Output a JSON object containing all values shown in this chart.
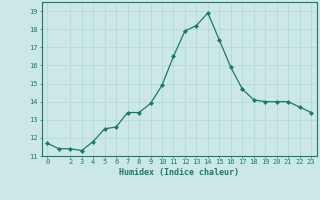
{
  "x": [
    0,
    1,
    2,
    3,
    4,
    5,
    6,
    7,
    8,
    9,
    10,
    11,
    12,
    13,
    14,
    15,
    16,
    17,
    18,
    19,
    20,
    21,
    22,
    23
  ],
  "y": [
    11.7,
    11.4,
    11.4,
    11.3,
    11.8,
    12.5,
    12.6,
    13.4,
    13.4,
    13.9,
    14.9,
    16.5,
    17.9,
    18.2,
    18.9,
    17.4,
    15.9,
    14.7,
    14.1,
    14.0,
    14.0,
    14.0,
    13.7,
    13.4
  ],
  "xlabel": "Humidex (Indice chaleur)",
  "ylim": [
    11,
    19.5
  ],
  "xlim": [
    -0.5,
    23.5
  ],
  "yticks": [
    11,
    12,
    13,
    14,
    15,
    16,
    17,
    18,
    19
  ],
  "xticks": [
    0,
    2,
    3,
    4,
    5,
    6,
    7,
    8,
    9,
    10,
    11,
    12,
    13,
    14,
    15,
    16,
    17,
    18,
    19,
    20,
    21,
    22,
    23
  ],
  "line_color": "#1a7a6e",
  "marker_color": "#1a7a6e",
  "bg_color": "#cce8e6",
  "grid_color": "#b0d8d5",
  "tick_color": "#1a7a6e",
  "label_color": "#1a7a6e"
}
